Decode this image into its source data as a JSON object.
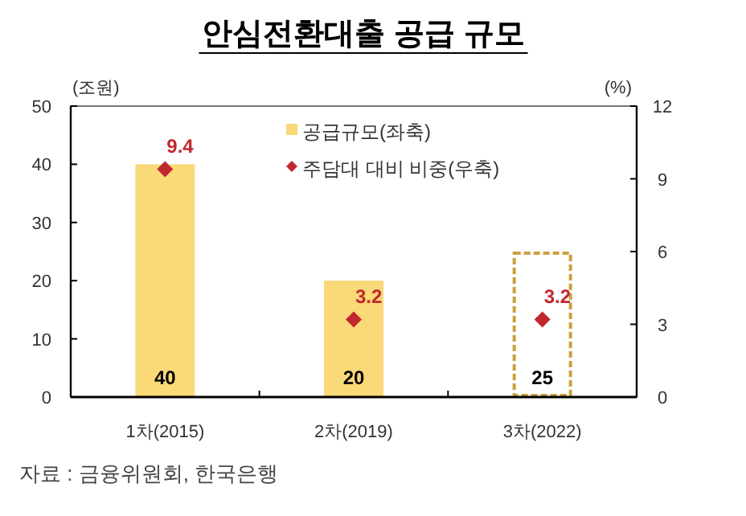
{
  "chart_data": {
    "type": "bar",
    "title": "안심전환대출 공급 규모",
    "ylabel": "(조원)",
    "y2label": "(%)",
    "categories": [
      "1차(2015)",
      "2차(2019)",
      "3차(2022)"
    ],
    "series": [
      {
        "name": "공급규모(좌축)",
        "color": "#f9d978",
        "values": [
          40,
          20,
          null
        ]
      },
      {
        "color": "#c9a23f",
        "line_style": "dashed",
        "values": [
          null,
          null,
          25
        ]
      },
      {
        "name": "주담대 대비 비중(우축)",
        "type": "scatter",
        "axis": "y2",
        "color": "#c0282d",
        "marker": "diamond",
        "values": [
          9.4,
          3.2,
          3.2
        ]
      }
    ],
    "ylim": [
      0,
      50
    ],
    "yticks": [
      0,
      10,
      20,
      30,
      40,
      50
    ],
    "y2lim": [
      0,
      12
    ],
    "y2ticks": [
      0,
      3,
      6,
      9,
      12
    ],
    "data_labels": true,
    "legend": "top right",
    "annotations": [
      "자료 : 금융위원회, 한국은행"
    ]
  }
}
